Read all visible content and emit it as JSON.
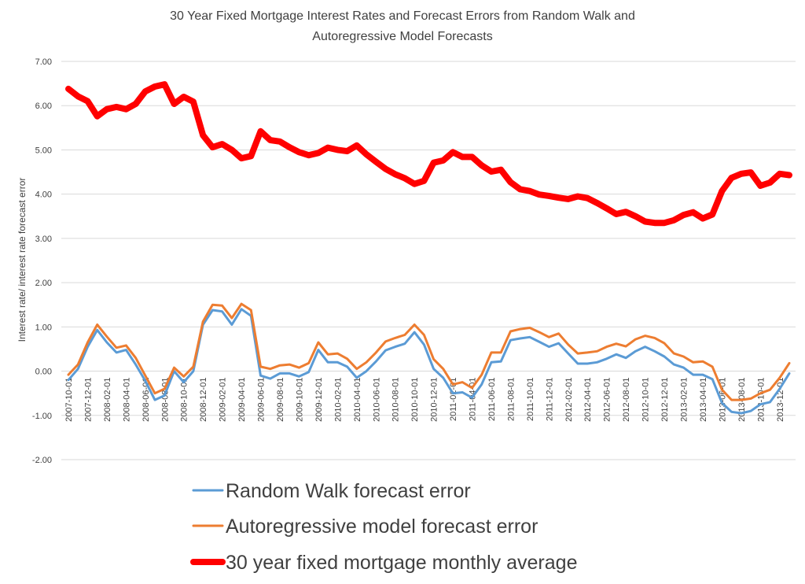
{
  "chart_data": {
    "type": "line",
    "title_lines": [
      "30 Year Fixed Mortgage Interest Rates and Forecast Errors from Random Walk and",
      "Autoregressive Model Forecasts"
    ],
    "xlabel": "",
    "ylabel": "Interest rate/ interest rate forecast error",
    "ylim": [
      -2,
      7
    ],
    "yticks": [
      "-2.00",
      "-1.00",
      "0.00",
      "1.00",
      "2.00",
      "3.00",
      "4.00",
      "5.00",
      "6.00",
      "7.00"
    ],
    "grid": true,
    "legend_position": "bottom",
    "x_start": "2007-10",
    "x_count": 76,
    "x_tick_labels": [
      "2007-10-01",
      "2007-12-01",
      "2008-02-01",
      "2008-04-01",
      "2008-06-01",
      "2008-08-01",
      "2008-10-01",
      "2008-12-01",
      "2009-02-01",
      "2009-04-01",
      "2009-06-01",
      "2009-08-01",
      "2009-10-01",
      "2009-12-01",
      "2010-02-01",
      "2010-04-01",
      "2010-06-01",
      "2010-08-01",
      "2010-10-01",
      "2010-12-01",
      "2011-02-01",
      "2011-04-01",
      "2011-06-01",
      "2011-08-01",
      "2011-10-01",
      "2011-12-01",
      "2012-02-01",
      "2012-04-01",
      "2012-06-01",
      "2012-08-01",
      "2012-10-01",
      "2012-12-01",
      "2013-02-01",
      "2013-04-01",
      "2013-06-01",
      "2013-08-01",
      "2013-10-01",
      "2013-12-01"
    ],
    "series": [
      {
        "name": "Random Walk forecast error",
        "color": "#5b9bd5",
        "width": 3,
        "values": [
          -0.2,
          0.05,
          0.55,
          0.93,
          0.65,
          0.42,
          0.48,
          0.15,
          -0.22,
          -0.65,
          -0.55,
          0.0,
          -0.25,
          0.0,
          1.05,
          1.38,
          1.35,
          1.05,
          1.4,
          1.25,
          -0.1,
          -0.17,
          -0.05,
          -0.05,
          -0.12,
          -0.02,
          0.48,
          0.2,
          0.2,
          0.1,
          -0.15,
          0.0,
          0.22,
          0.47,
          0.55,
          0.62,
          0.88,
          0.6,
          0.05,
          -0.15,
          -0.5,
          -0.48,
          -0.6,
          -0.3,
          0.2,
          0.22,
          0.7,
          0.74,
          0.77,
          0.66,
          0.55,
          0.63,
          0.4,
          0.17,
          0.17,
          0.2,
          0.28,
          0.38,
          0.3,
          0.45,
          0.55,
          0.45,
          0.33,
          0.15,
          0.08,
          -0.08,
          -0.08,
          -0.18,
          -0.72,
          -0.92,
          -0.95,
          -0.9,
          -0.75,
          -0.7,
          -0.4,
          -0.05
        ]
      },
      {
        "name": "Autoregressive model forecast error",
        "color": "#ed7d31",
        "width": 3,
        "values": [
          -0.08,
          0.15,
          0.65,
          1.05,
          0.78,
          0.53,
          0.58,
          0.3,
          -0.1,
          -0.5,
          -0.4,
          0.08,
          -0.12,
          0.1,
          1.12,
          1.5,
          1.48,
          1.2,
          1.52,
          1.38,
          0.1,
          0.05,
          0.13,
          0.15,
          0.08,
          0.18,
          0.65,
          0.38,
          0.4,
          0.28,
          0.05,
          0.2,
          0.42,
          0.67,
          0.75,
          0.82,
          1.05,
          0.82,
          0.27,
          0.05,
          -0.3,
          -0.25,
          -0.38,
          -0.08,
          0.42,
          0.42,
          0.9,
          0.95,
          0.98,
          0.88,
          0.77,
          0.85,
          0.6,
          0.4,
          0.42,
          0.45,
          0.55,
          0.62,
          0.56,
          0.72,
          0.8,
          0.75,
          0.63,
          0.4,
          0.33,
          0.2,
          0.22,
          0.1,
          -0.42,
          -0.65,
          -0.65,
          -0.62,
          -0.5,
          -0.42,
          -0.15,
          0.18
        ]
      },
      {
        "name": "30 year fixed mortgage monthly average",
        "color": "#ff0000",
        "width": 8,
        "values": [
          6.38,
          6.21,
          6.1,
          5.76,
          5.92,
          5.97,
          5.92,
          6.04,
          6.32,
          6.43,
          6.48,
          6.04,
          6.2,
          6.09,
          5.33,
          5.06,
          5.13,
          5.0,
          4.81,
          4.86,
          5.42,
          5.22,
          5.19,
          5.06,
          4.95,
          4.88,
          4.93,
          5.05,
          5.0,
          4.97,
          5.1,
          4.9,
          4.73,
          4.57,
          4.45,
          4.36,
          4.23,
          4.3,
          4.71,
          4.76,
          4.95,
          4.84,
          4.84,
          4.65,
          4.51,
          4.55,
          4.27,
          4.11,
          4.07,
          3.99,
          3.96,
          3.92,
          3.89,
          3.95,
          3.91,
          3.8,
          3.68,
          3.55,
          3.6,
          3.5,
          3.38,
          3.35,
          3.35,
          3.41,
          3.53,
          3.59,
          3.45,
          3.54,
          4.07,
          4.37,
          4.46,
          4.49,
          4.19,
          4.26,
          4.46,
          4.43
        ]
      }
    ]
  }
}
